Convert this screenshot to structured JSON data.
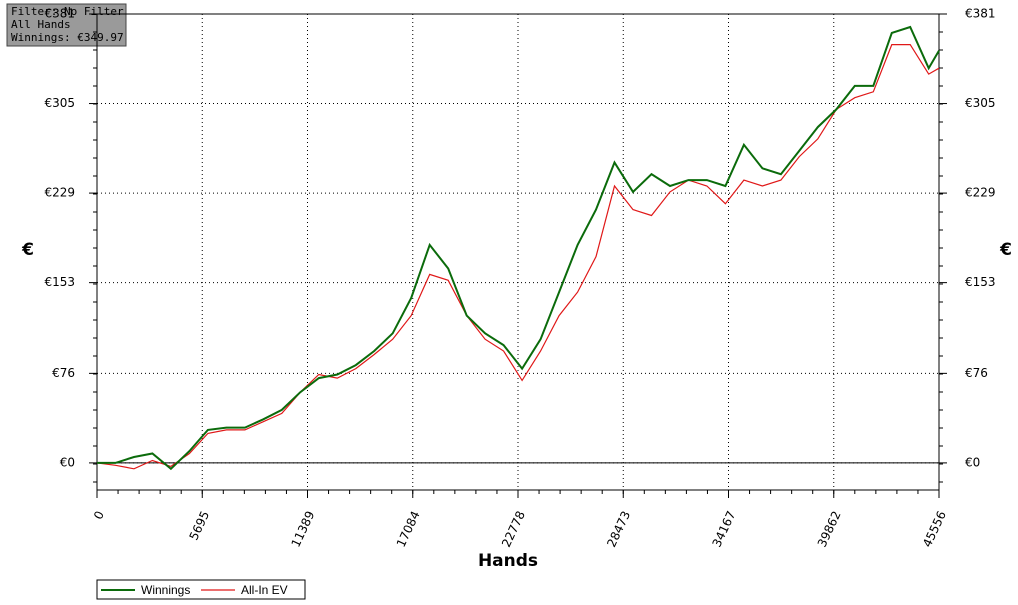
{
  "chart_data": {
    "type": "line",
    "info": [
      "Filter: No Filter",
      "All Hands",
      "Winnings: €349.97"
    ],
    "xlabel": "Hands",
    "ylabel": "€",
    "y2label": "€",
    "x": [
      0,
      1000,
      2000,
      3000,
      4000,
      5000,
      6000,
      7000,
      8000,
      9000,
      10000,
      11000,
      12000,
      13000,
      14000,
      15000,
      16000,
      17000,
      18000,
      19000,
      20000,
      21000,
      22000,
      23000,
      24000,
      25000,
      26000,
      27000,
      28000,
      29000,
      30000,
      31000,
      32000,
      33000,
      34000,
      35000,
      36000,
      37000,
      38000,
      39000,
      40000,
      41000,
      42000,
      43000,
      44000,
      45000,
      45556
    ],
    "series": [
      {
        "name": "Winnings",
        "color": "#0b6b0b",
        "values": [
          0,
          0,
          5,
          8,
          -5,
          10,
          28,
          30,
          30,
          37,
          45,
          60,
          72,
          75,
          83,
          95,
          110,
          140,
          185,
          165,
          125,
          110,
          100,
          80,
          105,
          145,
          185,
          215,
          255,
          230,
          245,
          235,
          240,
          240,
          235,
          270,
          250,
          245,
          265,
          285,
          300,
          320,
          320,
          365,
          370,
          335,
          349.97
        ]
      },
      {
        "name": "All-In EV",
        "color": "#e01818",
        "values": [
          0,
          -2,
          -5,
          2,
          -3,
          8,
          25,
          28,
          28,
          35,
          42,
          60,
          75,
          72,
          80,
          92,
          105,
          125,
          160,
          155,
          125,
          105,
          95,
          70,
          95,
          125,
          145,
          175,
          235,
          215,
          210,
          230,
          240,
          235,
          220,
          240,
          235,
          240,
          260,
          275,
          300,
          310,
          315,
          355,
          355,
          330,
          335
        ]
      }
    ],
    "xlim": [
      0,
      45556
    ],
    "xticks": [
      0,
      5695,
      11389,
      17084,
      22778,
      28473,
      34167,
      39862,
      45556
    ],
    "ylim": [
      -23,
      381
    ],
    "yticks": [
      {
        "value": 0,
        "label": "€0"
      },
      {
        "value": 76,
        "label": "€76"
      },
      {
        "value": 153,
        "label": "€153"
      },
      {
        "value": 229,
        "label": "€229"
      },
      {
        "value": 305,
        "label": "€305"
      },
      {
        "value": 381,
        "label": "€381"
      }
    ],
    "grid": true
  }
}
